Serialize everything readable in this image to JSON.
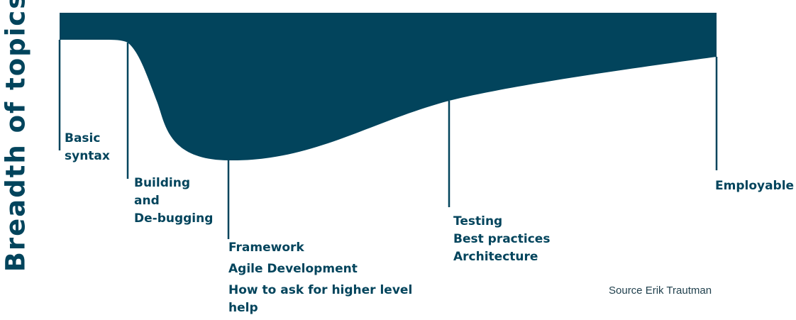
{
  "diagram": {
    "y_label": "Breadth of topics",
    "fill_color": "#02445c",
    "stages": [
      {
        "lines": [
          "Basic",
          "syntax"
        ]
      },
      {
        "lines": [
          "Building",
          "and",
          "De-bugging"
        ]
      },
      {
        "lines": [
          "Framework",
          "Agile Development",
          "How to ask for higher level help"
        ]
      },
      {
        "lines": [
          "Testing",
          "Best practices",
          "Architecture"
        ]
      },
      {
        "lines": [
          "Employable"
        ]
      }
    ],
    "source": "Source Erik Trautman"
  }
}
